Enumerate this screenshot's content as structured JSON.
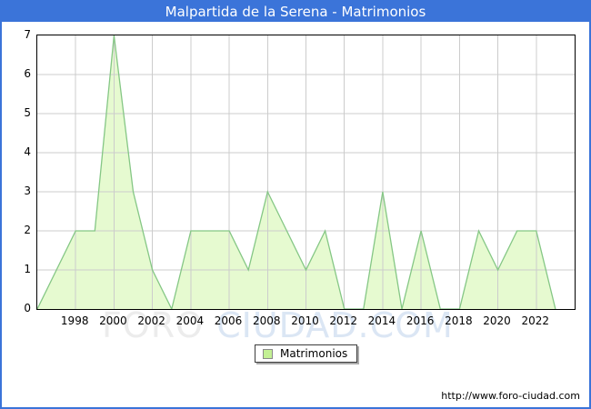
{
  "window": {
    "title": "Malpartida de la Serena - Matrimonios"
  },
  "legend": {
    "label": "Matrimonios"
  },
  "watermark": {
    "part1": "FORO",
    "part2": "CIUDAD.COM"
  },
  "footer": {
    "url": "http://www.foro-ciudad.com"
  },
  "colors": {
    "frame_blue": "#3B74D9",
    "title_text": "#FFFFFF",
    "area_fill": "#E6FAD0",
    "line": "#85C785",
    "gridline": "#CCCCCC",
    "plot_border": "#000000",
    "legend_swatch": "#C3F094",
    "watermark_gray": "#ECECEC",
    "watermark_blue": "#DBE6F4"
  },
  "chart_data": {
    "type": "area",
    "title": "Malpartida de la Serena - Matrimonios",
    "series_name": "Matrimonios",
    "x": [
      1996,
      1997,
      1998,
      1999,
      2000,
      2001,
      2002,
      2003,
      2004,
      2005,
      2006,
      2007,
      2008,
      2009,
      2010,
      2011,
      2012,
      2013,
      2014,
      2015,
      2016,
      2017,
      2018,
      2019,
      2020,
      2021,
      2022,
      2023
    ],
    "values": [
      0,
      1,
      2,
      2,
      7,
      3,
      1,
      0,
      2,
      2,
      2,
      1,
      3,
      2,
      1,
      2,
      0,
      0,
      3,
      0,
      2,
      0,
      0,
      2,
      1,
      2,
      2,
      0
    ],
    "xlabel": "",
    "ylabel": "",
    "ylim": [
      0,
      7
    ],
    "x_range": [
      1996,
      2024
    ],
    "grid": true,
    "y_gridlines": [
      1,
      2,
      3,
      4,
      5,
      6
    ],
    "x_gridlines": [
      1998,
      2000,
      2002,
      2004,
      2006,
      2008,
      2010,
      2012,
      2014,
      2016,
      2018,
      2020,
      2022
    ],
    "y_tick_labels": [
      0,
      1,
      2,
      3,
      4,
      5,
      6,
      7
    ],
    "x_tick_labels": [
      1998,
      2000,
      2002,
      2004,
      2006,
      2008,
      2010,
      2012,
      2014,
      2016,
      2018,
      2020,
      2022
    ],
    "legend_position": "bottom-center"
  }
}
